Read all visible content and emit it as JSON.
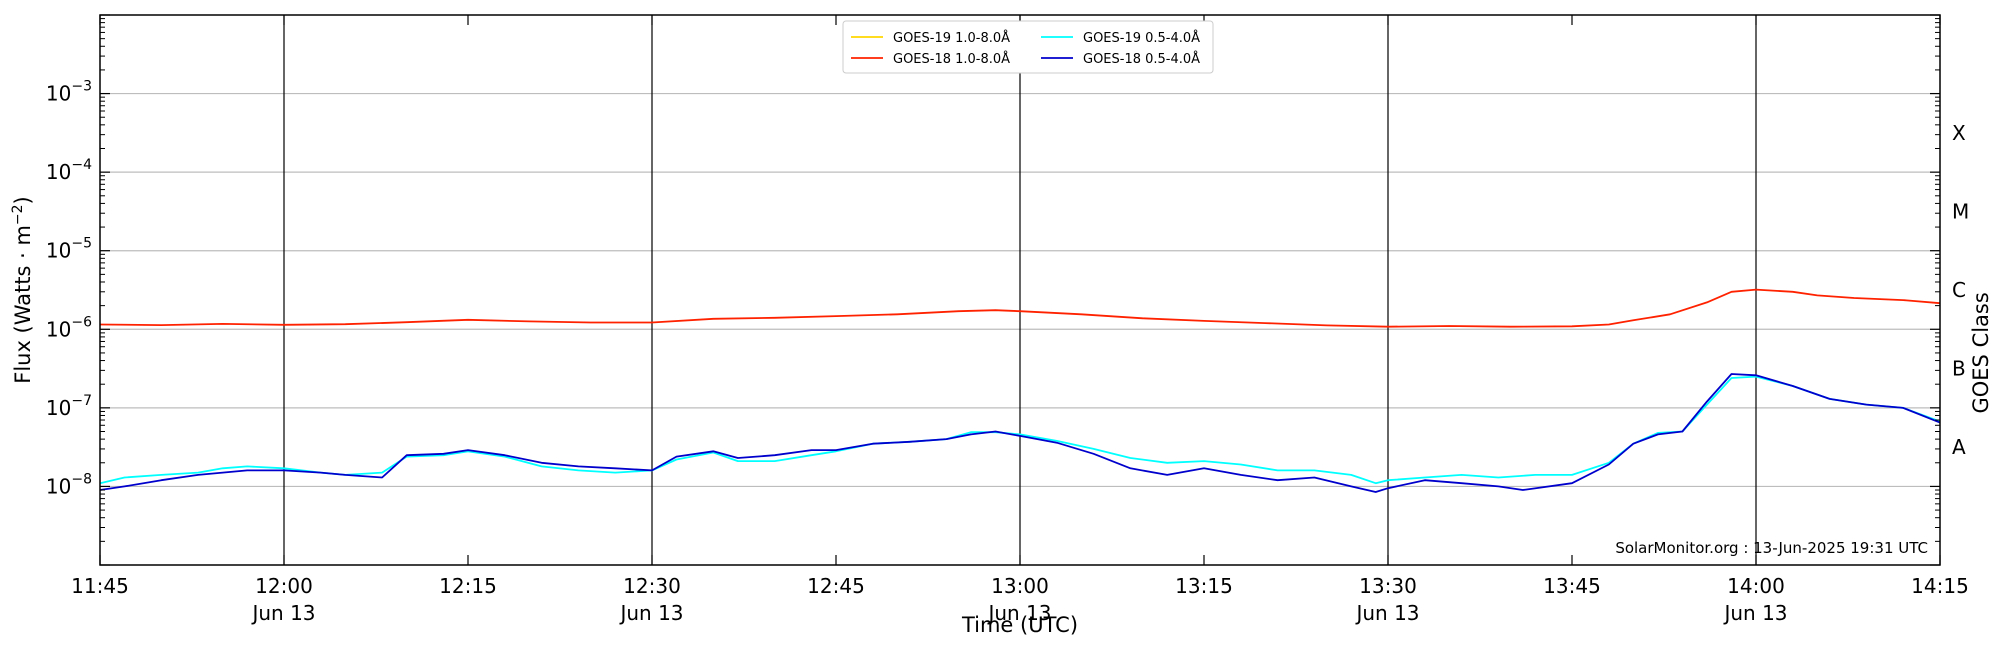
{
  "chart_data": {
    "type": "line",
    "xlabel": "Time (UTC)",
    "ylabel_prefix": "Flux (Watts · m",
    "ylabel_exp": "−2",
    "ylabel_suffix": ")",
    "right_label": "GOES Class",
    "x_range": [
      "11:45",
      "14:15"
    ],
    "y_range": [
      1e-09,
      0.01
    ],
    "y_scale": "log",
    "grid": "horizontal at each decade",
    "x_ticks": [
      {
        "time": "11:45",
        "label": "11:45",
        "date": ""
      },
      {
        "time": "12:00",
        "label": "12:00",
        "date": "Jun 13"
      },
      {
        "time": "12:15",
        "label": "12:15",
        "date": ""
      },
      {
        "time": "12:30",
        "label": "12:30",
        "date": "Jun 13"
      },
      {
        "time": "12:45",
        "label": "12:45",
        "date": ""
      },
      {
        "time": "13:00",
        "label": "13:00",
        "date": "Jun 13"
      },
      {
        "time": "13:15",
        "label": "13:15",
        "date": ""
      },
      {
        "time": "13:30",
        "label": "13:30",
        "date": "Jun 13"
      },
      {
        "time": "13:45",
        "label": "13:45",
        "date": ""
      },
      {
        "time": "14:00",
        "label": "14:00",
        "date": "Jun 13"
      },
      {
        "time": "14:15",
        "label": "14:15",
        "date": ""
      }
    ],
    "y_ticks": [
      {
        "exp": -8,
        "base": "10",
        "sup": "−8"
      },
      {
        "exp": -7,
        "base": "10",
        "sup": "−7"
      },
      {
        "exp": -6,
        "base": "10",
        "sup": "−6"
      },
      {
        "exp": -5,
        "base": "10",
        "sup": "−5"
      },
      {
        "exp": -4,
        "base": "10",
        "sup": "−4"
      },
      {
        "exp": -3,
        "base": "10",
        "sup": "−3"
      }
    ],
    "goes_classes": [
      {
        "label": "A",
        "exp": -7.5
      },
      {
        "label": "B",
        "exp": -6.5
      },
      {
        "label": "C",
        "exp": -5.5
      },
      {
        "label": "M",
        "exp": -4.5
      },
      {
        "label": "X",
        "exp": -3.5
      }
    ],
    "vertical_lines": [
      "12:00",
      "12:30",
      "13:00",
      "13:30",
      "14:00"
    ],
    "legend": {
      "placement": "top-center",
      "entries": [
        {
          "name": "GOES-19 1.0-8.0Å",
          "color": "#ffd700"
        },
        {
          "name": "GOES-19 0.5-4.0Å",
          "color": "#00ffff"
        },
        {
          "name": "GOES-18 1.0-8.0Å",
          "color": "#ff2200"
        },
        {
          "name": "GOES-18 0.5-4.0Å",
          "color": "#0000cc"
        }
      ]
    },
    "credit": "SolarMonitor.org : 13-Jun-2025 19:31 UTC",
    "series": [
      {
        "name": "GOES-18 1.0-8.0Å",
        "color": "#ff2200",
        "points": [
          [
            "11:45",
            1.15e-06
          ],
          [
            "11:50",
            1.13e-06
          ],
          [
            "11:55",
            1.17e-06
          ],
          [
            "12:00",
            1.14e-06
          ],
          [
            "12:05",
            1.16e-06
          ],
          [
            "12:10",
            1.23e-06
          ],
          [
            "12:15",
            1.32e-06
          ],
          [
            "12:20",
            1.26e-06
          ],
          [
            "12:25",
            1.22e-06
          ],
          [
            "12:30",
            1.22e-06
          ],
          [
            "12:35",
            1.36e-06
          ],
          [
            "12:40",
            1.4e-06
          ],
          [
            "12:45",
            1.47e-06
          ],
          [
            "12:50",
            1.55e-06
          ],
          [
            "12:55",
            1.7e-06
          ],
          [
            "12:58",
            1.75e-06
          ],
          [
            "13:00",
            1.7e-06
          ],
          [
            "13:05",
            1.55e-06
          ],
          [
            "13:10",
            1.38e-06
          ],
          [
            "13:15",
            1.28e-06
          ],
          [
            "13:20",
            1.2e-06
          ],
          [
            "13:25",
            1.12e-06
          ],
          [
            "13:30",
            1.08e-06
          ],
          [
            "13:35",
            1.1e-06
          ],
          [
            "13:40",
            1.08e-06
          ],
          [
            "13:45",
            1.09e-06
          ],
          [
            "13:48",
            1.15e-06
          ],
          [
            "13:50",
            1.3e-06
          ],
          [
            "13:53",
            1.55e-06
          ],
          [
            "13:56",
            2.2e-06
          ],
          [
            "13:58",
            3e-06
          ],
          [
            "14:00",
            3.2e-06
          ],
          [
            "14:03",
            3e-06
          ],
          [
            "14:05",
            2.7e-06
          ],
          [
            "14:08",
            2.5e-06
          ],
          [
            "14:12",
            2.35e-06
          ],
          [
            "14:15",
            2.15e-06
          ]
        ]
      },
      {
        "name": "GOES-19 1.0-8.0Å",
        "color": "#ffd700",
        "points": []
      },
      {
        "name": "GOES-19 0.5-4.0Å",
        "color": "#00ffff",
        "points": [
          [
            "11:45",
            1.1e-08
          ],
          [
            "11:47",
            1.3e-08
          ],
          [
            "11:50",
            1.4e-08
          ],
          [
            "11:53",
            1.5e-08
          ],
          [
            "11:55",
            1.7e-08
          ],
          [
            "11:57",
            1.8e-08
          ],
          [
            "12:00",
            1.7e-08
          ],
          [
            "12:03",
            1.5e-08
          ],
          [
            "12:05",
            1.4e-08
          ],
          [
            "12:08",
            1.5e-08
          ],
          [
            "12:10",
            2.4e-08
          ],
          [
            "12:13",
            2.5e-08
          ],
          [
            "12:15",
            2.8e-08
          ],
          [
            "12:18",
            2.4e-08
          ],
          [
            "12:21",
            1.8e-08
          ],
          [
            "12:24",
            1.6e-08
          ],
          [
            "12:27",
            1.5e-08
          ],
          [
            "12:30",
            1.6e-08
          ],
          [
            "12:32",
            2.2e-08
          ],
          [
            "12:35",
            2.7e-08
          ],
          [
            "12:37",
            2.1e-08
          ],
          [
            "12:40",
            2.1e-08
          ],
          [
            "12:43",
            2.5e-08
          ],
          [
            "12:45",
            2.8e-08
          ],
          [
            "12:48",
            3.5e-08
          ],
          [
            "12:51",
            3.7e-08
          ],
          [
            "12:54",
            4e-08
          ],
          [
            "12:56",
            4.9e-08
          ],
          [
            "12:58",
            4.9e-08
          ],
          [
            "13:00",
            4.6e-08
          ],
          [
            "13:03",
            3.8e-08
          ],
          [
            "13:06",
            3e-08
          ],
          [
            "13:09",
            2.3e-08
          ],
          [
            "13:12",
            2e-08
          ],
          [
            "13:15",
            2.1e-08
          ],
          [
            "13:18",
            1.9e-08
          ],
          [
            "13:21",
            1.6e-08
          ],
          [
            "13:24",
            1.6e-08
          ],
          [
            "13:27",
            1.4e-08
          ],
          [
            "13:29",
            1.1e-08
          ],
          [
            "13:30",
            1.2e-08
          ],
          [
            "13:33",
            1.3e-08
          ],
          [
            "13:36",
            1.4e-08
          ],
          [
            "13:39",
            1.3e-08
          ],
          [
            "13:42",
            1.4e-08
          ],
          [
            "13:45",
            1.4e-08
          ],
          [
            "13:48",
            2e-08
          ],
          [
            "13:50",
            3.5e-08
          ],
          [
            "13:52",
            4.8e-08
          ],
          [
            "13:54",
            5e-08
          ],
          [
            "13:56",
            1.1e-07
          ],
          [
            "13:58",
            2.4e-07
          ],
          [
            "14:00",
            2.5e-07
          ],
          [
            "14:03",
            1.9e-07
          ],
          [
            "14:06",
            1.3e-07
          ],
          [
            "14:09",
            1.1e-07
          ],
          [
            "14:12",
            1e-07
          ],
          [
            "14:15",
            6.7e-08
          ]
        ]
      },
      {
        "name": "GOES-18 0.5-4.0Å",
        "color": "#0000cc",
        "points": [
          [
            "11:45",
            9e-09
          ],
          [
            "11:47",
            1e-08
          ],
          [
            "11:50",
            1.2e-08
          ],
          [
            "11:53",
            1.4e-08
          ],
          [
            "11:55",
            1.5e-08
          ],
          [
            "11:57",
            1.6e-08
          ],
          [
            "12:00",
            1.6e-08
          ],
          [
            "12:03",
            1.5e-08
          ],
          [
            "12:05",
            1.4e-08
          ],
          [
            "12:08",
            1.3e-08
          ],
          [
            "12:10",
            2.5e-08
          ],
          [
            "12:13",
            2.6e-08
          ],
          [
            "12:15",
            2.9e-08
          ],
          [
            "12:18",
            2.5e-08
          ],
          [
            "12:21",
            2e-08
          ],
          [
            "12:24",
            1.8e-08
          ],
          [
            "12:27",
            1.7e-08
          ],
          [
            "12:30",
            1.6e-08
          ],
          [
            "12:32",
            2.4e-08
          ],
          [
            "12:35",
            2.8e-08
          ],
          [
            "12:37",
            2.3e-08
          ],
          [
            "12:40",
            2.5e-08
          ],
          [
            "12:43",
            2.9e-08
          ],
          [
            "12:45",
            2.9e-08
          ],
          [
            "12:48",
            3.5e-08
          ],
          [
            "12:51",
            3.7e-08
          ],
          [
            "12:54",
            4e-08
          ],
          [
            "12:56",
            4.6e-08
          ],
          [
            "12:58",
            5e-08
          ],
          [
            "13:00",
            4.4e-08
          ],
          [
            "13:03",
            3.6e-08
          ],
          [
            "13:06",
            2.6e-08
          ],
          [
            "13:09",
            1.7e-08
          ],
          [
            "13:12",
            1.4e-08
          ],
          [
            "13:15",
            1.7e-08
          ],
          [
            "13:18",
            1.4e-08
          ],
          [
            "13:21",
            1.2e-08
          ],
          [
            "13:24",
            1.3e-08
          ],
          [
            "13:27",
            1e-08
          ],
          [
            "13:29",
            8.5e-09
          ],
          [
            "13:30",
            9.5e-09
          ],
          [
            "13:33",
            1.2e-08
          ],
          [
            "13:36",
            1.1e-08
          ],
          [
            "13:39",
            1e-08
          ],
          [
            "13:41",
            9e-09
          ],
          [
            "13:45",
            1.1e-08
          ],
          [
            "13:48",
            1.9e-08
          ],
          [
            "13:50",
            3.5e-08
          ],
          [
            "13:52",
            4.6e-08
          ],
          [
            "13:54",
            5e-08
          ],
          [
            "13:56",
            1.2e-07
          ],
          [
            "13:58",
            2.7e-07
          ],
          [
            "14:00",
            2.6e-07
          ],
          [
            "14:03",
            1.9e-07
          ],
          [
            "14:06",
            1.3e-07
          ],
          [
            "14:09",
            1.1e-07
          ],
          [
            "14:12",
            1e-07
          ],
          [
            "14:15",
            6.5e-08
          ]
        ]
      }
    ]
  }
}
